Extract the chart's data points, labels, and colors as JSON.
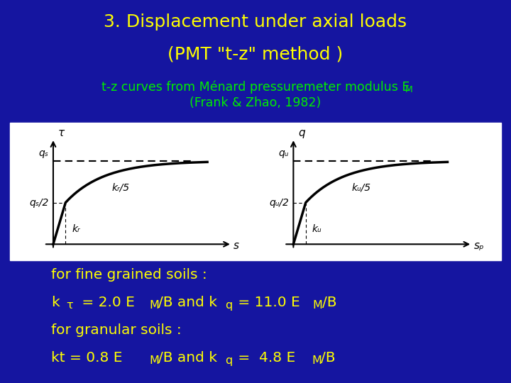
{
  "title_line1": "3. Displacement under axial loads",
  "title_line2": "(PMT \"t-z\" method )",
  "subtitle_line1": "t-z curves from Ménard pressuremeter modulus E",
  "subtitle_line2": "(Frank & Zhao, 1982)",
  "background_color": "#1515a0",
  "title_color": "#ffff00",
  "subtitle_color": "#00ee00",
  "body_text_color": "#ffff00",
  "plot_bg_color": "#ffffff",
  "curve_color": "#000000",
  "left_plot": {
    "y_label": "τ",
    "x_label": "s",
    "qs_label": "qₛ",
    "qs_half_label": "qₛ/2",
    "kr_label": "kᵣ",
    "kr5_label": "kᵣ/5"
  },
  "right_plot": {
    "y_label": "q",
    "x_label": "sₚ",
    "qu_label": "qᵤ",
    "qu_half_label": "qᵤ/2",
    "kq_label": "kᵤ",
    "kq5_label": "kᵤ/5"
  }
}
